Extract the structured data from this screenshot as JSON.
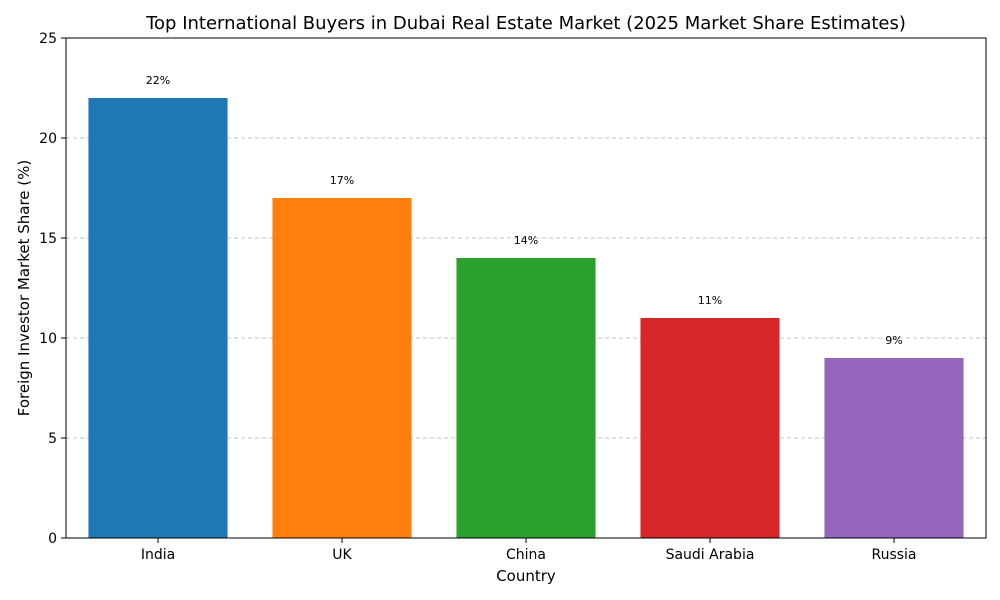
{
  "chart_data": {
    "type": "bar",
    "title": "Top International Buyers in Dubai Real Estate Market (2025 Market Share Estimates)",
    "xlabel": "Country",
    "ylabel": "Foreign Investor Market Share (%)",
    "categories": [
      "India",
      "UK",
      "China",
      "Saudi Arabia",
      "Russia"
    ],
    "values": [
      22,
      17,
      14,
      11,
      9
    ],
    "data_labels": [
      "22%",
      "17%",
      "14%",
      "11%",
      "9%"
    ],
    "colors": [
      "#1f77b4",
      "#ff7f0e",
      "#2ca02c",
      "#d62728",
      "#9467bd"
    ],
    "ylim": [
      0,
      25
    ],
    "yticks": [
      0,
      5,
      10,
      15,
      20,
      25
    ],
    "grid": "y-dashed",
    "legend": "none"
  }
}
